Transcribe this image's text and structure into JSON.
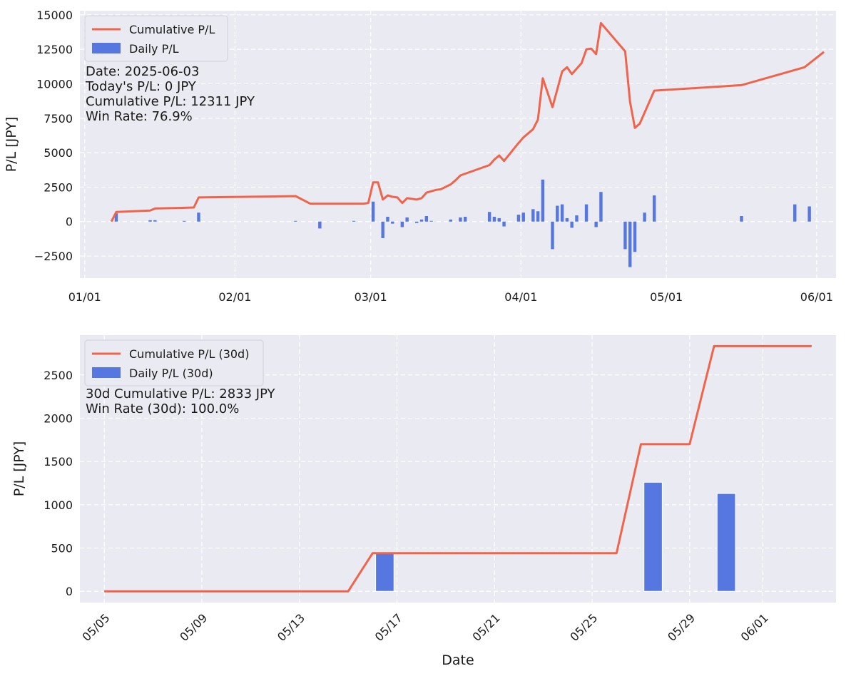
{
  "chart_data": [
    {
      "type": "bar+line",
      "ylabel": "P/L [JPY]",
      "xlabel": "",
      "ylim": [
        -4100,
        15300
      ],
      "xlim": [
        "2024-12-31",
        "2025-06-05"
      ],
      "yticks": [
        -2500,
        0,
        2500,
        5000,
        7500,
        10000,
        12500,
        15000
      ],
      "ytick_labels": [
        "−2500",
        "0",
        "2500",
        "5000",
        "7500",
        "10000",
        "12500",
        "15000"
      ],
      "xticks": [
        "2025-01-01",
        "2025-02-01",
        "2025-03-01",
        "2025-04-01",
        "2025-05-01",
        "2025-06-01"
      ],
      "xtick_labels": [
        "01/01",
        "02/01",
        "03/01",
        "04/01",
        "05/01",
        "06/01"
      ],
      "legend": {
        "placement": "top-left",
        "line_label": "Cumulative P/L",
        "bar_label": "Daily P/L"
      },
      "info_lines": [
        "Date: 2025-06-03",
        "Today's P/L: 0 JPY",
        "Cumulative P/L: 12311 JPY",
        "Win Rate: 76.9%"
      ],
      "grid": true,
      "colors": {
        "line": "#f0644b",
        "bar": "#5677e0",
        "bg": "#eaeaf2",
        "grid": "#ffffff"
      },
      "series": [
        {
          "kind": "bar",
          "x": [
            "2025-01-07",
            "2025-01-14",
            "2025-01-15",
            "2025-01-21",
            "2025-01-24",
            "2025-02-13",
            "2025-02-18",
            "2025-02-25",
            "2025-03-01",
            "2025-03-03",
            "2025-03-04",
            "2025-03-05",
            "2025-03-07",
            "2025-03-08",
            "2025-03-10",
            "2025-03-11",
            "2025-03-12",
            "2025-03-13",
            "2025-03-17",
            "2025-03-19",
            "2025-03-20",
            "2025-03-25",
            "2025-03-26",
            "2025-03-27",
            "2025-03-28",
            "2025-03-31",
            "2025-04-01",
            "2025-04-03",
            "2025-04-04",
            "2025-04-05",
            "2025-04-07",
            "2025-04-08",
            "2025-04-09",
            "2025-04-10",
            "2025-04-11",
            "2025-04-12",
            "2025-04-14",
            "2025-04-16",
            "2025-04-17",
            "2025-04-22",
            "2025-04-23",
            "2025-04-24",
            "2025-04-26",
            "2025-04-28",
            "2025-05-16",
            "2025-05-27",
            "2025-05-30"
          ],
          "values": [
            600,
            100,
            100,
            50,
            650,
            50,
            -500,
            50,
            1450,
            -1200,
            350,
            -150,
            -400,
            300,
            -100,
            150,
            400,
            50,
            150,
            300,
            350,
            700,
            350,
            250,
            -350,
            500,
            650,
            900,
            750,
            3050,
            -2000,
            1150,
            1250,
            250,
            -450,
            450,
            1250,
            -400,
            2150,
            -2000,
            -3300,
            -2200,
            650,
            1900,
            400,
            1250,
            1100
          ]
        },
        {
          "kind": "line",
          "x": [
            "2025-01-06",
            "2025-01-07",
            "2025-01-14",
            "2025-01-15",
            "2025-01-21",
            "2025-01-23",
            "2025-01-24",
            "2025-02-13",
            "2025-02-16",
            "2025-02-20",
            "2025-02-21",
            "2025-02-27",
            "2025-02-28",
            "2025-03-01",
            "2025-03-02",
            "2025-03-03",
            "2025-03-04",
            "2025-03-05",
            "2025-03-06",
            "2025-03-07",
            "2025-03-08",
            "2025-03-10",
            "2025-03-11",
            "2025-03-12",
            "2025-03-13",
            "2025-03-14",
            "2025-03-15",
            "2025-03-17",
            "2025-03-18",
            "2025-03-19",
            "2025-03-25",
            "2025-03-26",
            "2025-03-27",
            "2025-03-28",
            "2025-03-31",
            "2025-04-01",
            "2025-04-03",
            "2025-04-04",
            "2025-04-05",
            "2025-04-07",
            "2025-04-09",
            "2025-04-10",
            "2025-04-11",
            "2025-04-13",
            "2025-04-14",
            "2025-04-15",
            "2025-04-16",
            "2025-04-17",
            "2025-04-22",
            "2025-04-23",
            "2025-04-24",
            "2025-04-25",
            "2025-04-28",
            "2025-05-16",
            "2025-05-29",
            "2025-06-02"
          ],
          "values": [
            0,
            700,
            800,
            950,
            1000,
            1020,
            1750,
            1850,
            1300,
            1300,
            1300,
            1300,
            1350,
            2850,
            2850,
            1600,
            1900,
            1800,
            1750,
            1350,
            1700,
            1600,
            1700,
            2100,
            2200,
            2300,
            2350,
            2700,
            3000,
            3350,
            4100,
            4500,
            4800,
            4400,
            5700,
            6100,
            6700,
            7400,
            10400,
            8300,
            10900,
            11200,
            10700,
            11500,
            12500,
            12550,
            12150,
            14400,
            12350,
            8700,
            6800,
            7100,
            9500,
            9900,
            11200,
            12311
          ]
        }
      ]
    },
    {
      "type": "bar+line",
      "ylabel": "P/L [JPY]",
      "xlabel": "Date",
      "ylim": [
        -130,
        2960
      ],
      "xlim": [
        "2025-05-04",
        "2025-06-04"
      ],
      "yticks": [
        0,
        500,
        1000,
        1500,
        2000,
        2500
      ],
      "ytick_labels": [
        "0",
        "500",
        "1000",
        "1500",
        "2000",
        "2500"
      ],
      "xticks": [
        "2025-05-05",
        "2025-05-09",
        "2025-05-13",
        "2025-05-17",
        "2025-05-21",
        "2025-05-25",
        "2025-05-29",
        "2025-06-01"
      ],
      "xtick_labels": [
        "05/05",
        "05/09",
        "05/13",
        "05/17",
        "05/21",
        "05/25",
        "05/29",
        "06/01"
      ],
      "legend": {
        "placement": "top-left",
        "line_label": "Cumulative P/L (30d)",
        "bar_label": "Daily P/L (30d)"
      },
      "info_lines": [
        "30d Cumulative P/L: 2833 JPY",
        "Win Rate (30d): 100.0%"
      ],
      "grid": true,
      "colors": {
        "line": "#f0644b",
        "bar": "#5677e0",
        "bg": "#eaeaf2",
        "grid": "#ffffff"
      },
      "series": [
        {
          "kind": "bar",
          "x": [
            "2025-05-16",
            "2025-05-27",
            "2025-05-30"
          ],
          "values": [
            440,
            1260,
            1130
          ]
        },
        {
          "kind": "line",
          "x": [
            "2025-05-05",
            "2025-05-15",
            "2025-05-16",
            "2025-05-26",
            "2025-05-27",
            "2025-05-29",
            "2025-05-30",
            "2025-06-03"
          ],
          "values": [
            0,
            0,
            440,
            440,
            1700,
            1700,
            2833,
            2833
          ]
        }
      ]
    }
  ]
}
